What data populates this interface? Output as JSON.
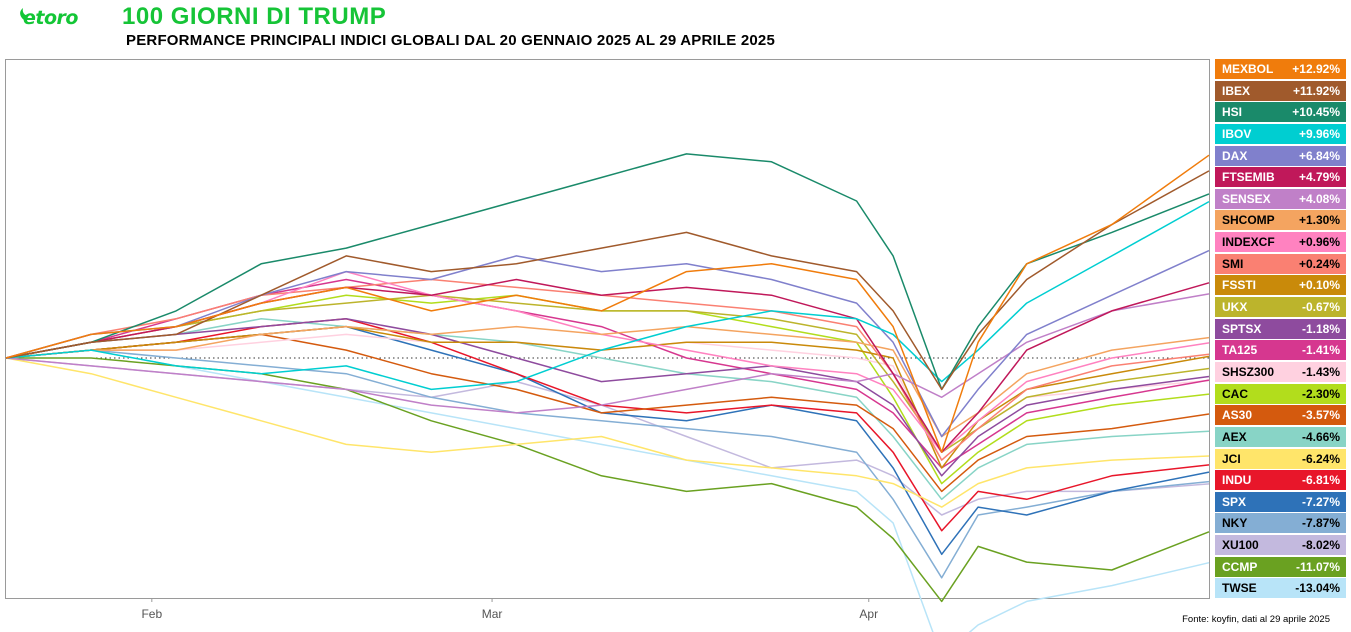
{
  "header": {
    "logo_text": "etoro",
    "title": "100 GIORNI DI TRUMP",
    "subtitle": "PERFORMANCE PRINCIPALI INDICI GLOBALI DAL 20 GENNAIO 2025 AL 29 APRILE 2025"
  },
  "source_note": "Fonte: koyfin, dati al 29 aprile 2025",
  "colors": {
    "brand_green": "#13c636",
    "frame": "#9a9a9a",
    "zero_line": "#333333"
  },
  "chart_data": {
    "type": "line",
    "title": "100 GIORNI DI TRUMP",
    "subtitle": "PERFORMANCE PRINCIPALI INDICI GLOBALI DAL 20 GENNAIO 2025 AL 29 APRILE 2025",
    "xlabel": "",
    "ylabel": "",
    "x_ticks": [
      "Feb",
      "Mar",
      "Apr"
    ],
    "x": [
      "2025-01-20",
      "2025-01-27",
      "2025-02-03",
      "2025-02-10",
      "2025-02-17",
      "2025-02-24",
      "2025-03-03",
      "2025-03-10",
      "2025-03-17",
      "2025-03-24",
      "2025-03-31",
      "2025-04-03",
      "2025-04-07",
      "2025-04-10",
      "2025-04-14",
      "2025-04-21",
      "2025-04-29"
    ],
    "ylim": [
      -17,
      17
    ],
    "grid": false,
    "legend_position": "right",
    "series": [
      {
        "name": "MEXBOL",
        "label": "+12.92%",
        "color": "#f07c0c",
        "text_color": "#ffffff",
        "values": [
          0,
          1.5,
          2.0,
          3.5,
          4.5,
          3.0,
          4.0,
          3.0,
          5.5,
          6.0,
          5.0,
          2.0,
          -6.0,
          1.0,
          6.0,
          8.5,
          12.92
        ]
      },
      {
        "name": "IBEX",
        "label": "+11.92%",
        "color": "#a05a2c",
        "text_color": "#ffffff",
        "values": [
          0,
          1.0,
          1.5,
          4.0,
          6.5,
          5.5,
          6.0,
          7.0,
          8.0,
          6.5,
          5.5,
          3.0,
          -2.0,
          1.5,
          5.0,
          8.5,
          11.92
        ]
      },
      {
        "name": "HSI",
        "label": "+10.45%",
        "color": "#1a8a6a",
        "text_color": "#ffffff",
        "values": [
          0,
          1.0,
          3.0,
          6.0,
          7.0,
          8.5,
          10.0,
          11.5,
          13.0,
          12.5,
          10.0,
          6.5,
          -2.0,
          2.0,
          6.0,
          8.0,
          10.45
        ]
      },
      {
        "name": "IBOV",
        "label": "+9.96%",
        "color": "#00ced1",
        "text_color": "#ffffff",
        "values": [
          0,
          0.5,
          -0.5,
          -1.0,
          -0.5,
          -2.0,
          -1.5,
          0.5,
          2.0,
          3.0,
          2.5,
          1.5,
          -1.5,
          0.5,
          3.5,
          6.5,
          9.96
        ]
      },
      {
        "name": "DAX",
        "label": "+6.84%",
        "color": "#8080cc",
        "text_color": "#ffffff",
        "values": [
          0,
          1.5,
          2.0,
          4.0,
          5.5,
          5.0,
          6.5,
          5.5,
          6.0,
          5.0,
          3.5,
          1.0,
          -5.0,
          -2.0,
          1.5,
          4.0,
          6.84
        ]
      },
      {
        "name": "FTSEMIB",
        "label": "+4.79%",
        "color": "#c0185a",
        "text_color": "#ffffff",
        "values": [
          0,
          1.0,
          2.0,
          3.5,
          4.5,
          4.0,
          5.0,
          4.0,
          4.5,
          4.0,
          2.5,
          -1.0,
          -6.0,
          -3.5,
          0.5,
          3.0,
          4.79
        ]
      },
      {
        "name": "SENSEX",
        "label": "+4.08%",
        "color": "#c080c8",
        "text_color": "#ffffff",
        "values": [
          0,
          -0.5,
          -1.0,
          -1.5,
          -2.0,
          -3.0,
          -3.5,
          -3.0,
          -2.0,
          -1.0,
          -1.5,
          -1.0,
          -2.5,
          -1.0,
          1.0,
          3.0,
          4.08
        ]
      },
      {
        "name": "SHCOMP",
        "label": "+1.30%",
        "color": "#f4a460",
        "text_color": "#000000",
        "values": [
          0,
          0.5,
          0.5,
          1.5,
          2.0,
          1.5,
          2.0,
          1.5,
          2.0,
          1.5,
          1.0,
          0.5,
          -5.0,
          -3.5,
          -1.0,
          0.5,
          1.3
        ]
      },
      {
        "name": "INDEXCF",
        "label": "+0.96%",
        "color": "#ff82c0",
        "text_color": "#000000",
        "values": [
          0,
          1.0,
          2.0,
          3.5,
          5.5,
          4.0,
          3.0,
          1.5,
          0.5,
          -0.5,
          -1.0,
          -2.0,
          -6.0,
          -4.0,
          -1.5,
          0.0,
          0.96
        ]
      },
      {
        "name": "SMI",
        "label": "+0.24%",
        "color": "#fa8072",
        "text_color": "#000000",
        "values": [
          0,
          1.5,
          2.5,
          4.0,
          4.5,
          5.0,
          4.5,
          4.0,
          3.5,
          3.0,
          2.0,
          -1.0,
          -6.5,
          -4.5,
          -2.0,
          -0.5,
          0.24
        ]
      },
      {
        "name": "FSSTI",
        "label": "+0.10%",
        "color": "#c98a0a",
        "text_color": "#ffffff",
        "values": [
          0,
          0.5,
          1.0,
          1.5,
          2.0,
          1.0,
          1.0,
          0.5,
          1.0,
          1.0,
          0.5,
          0.0,
          -7.0,
          -4.0,
          -2.0,
          -1.0,
          0.1
        ]
      },
      {
        "name": "UKX",
        "label": "-0.67%",
        "color": "#bcb42c",
        "text_color": "#ffffff",
        "values": [
          0,
          1.0,
          2.0,
          3.0,
          3.5,
          4.0,
          3.5,
          3.0,
          3.0,
          2.5,
          1.5,
          -1.5,
          -6.0,
          -4.5,
          -2.5,
          -1.5,
          -0.67
        ]
      },
      {
        "name": "SPTSX",
        "label": "-1.18%",
        "color": "#8e4b9e",
        "text_color": "#ffffff",
        "values": [
          0,
          1.0,
          1.5,
          2.0,
          2.5,
          1.5,
          0.0,
          -1.5,
          -1.0,
          -0.5,
          -1.5,
          -3.0,
          -7.5,
          -5.0,
          -3.0,
          -2.0,
          -1.18
        ]
      },
      {
        "name": "TA125",
        "label": "-1.41%",
        "color": "#d6378f",
        "text_color": "#ffffff",
        "values": [
          0,
          1.0,
          2.5,
          4.0,
          5.0,
          4.0,
          3.0,
          2.0,
          0.0,
          -1.0,
          -2.0,
          -3.5,
          -7.0,
          -5.5,
          -3.5,
          -2.5,
          -1.41
        ]
      },
      {
        "name": "SHSZ300",
        "label": "-1.43%",
        "color": "#ffd1e0",
        "text_color": "#000000",
        "values": [
          0,
          0.5,
          0.5,
          1.0,
          1.5,
          1.0,
          1.0,
          0.5,
          1.0,
          0.5,
          0.0,
          -0.5,
          -6.5,
          -4.5,
          -2.5,
          -2.0,
          -1.43
        ]
      },
      {
        "name": "CAC",
        "label": "-2.30%",
        "color": "#b2dd1c",
        "text_color": "#000000",
        "values": [
          0,
          1.0,
          2.0,
          3.0,
          4.0,
          3.5,
          4.0,
          3.0,
          3.0,
          2.0,
          1.0,
          -2.5,
          -8.0,
          -6.0,
          -4.0,
          -3.0,
          -2.3
        ]
      },
      {
        "name": "AS30",
        "label": "-3.57%",
        "color": "#d45a0e",
        "text_color": "#ffffff",
        "values": [
          0,
          0.5,
          1.0,
          1.5,
          0.5,
          -1.0,
          -2.0,
          -3.5,
          -3.0,
          -2.5,
          -3.0,
          -4.5,
          -8.5,
          -6.5,
          -5.0,
          -4.5,
          -3.57
        ]
      },
      {
        "name": "AEX",
        "label": "-4.66%",
        "color": "#88d4c6",
        "text_color": "#000000",
        "values": [
          0,
          1.0,
          1.5,
          2.5,
          2.0,
          1.5,
          1.0,
          0.0,
          -1.0,
          -1.5,
          -2.5,
          -5.0,
          -9.0,
          -7.0,
          -5.5,
          -5.0,
          -4.66
        ]
      },
      {
        "name": "JCI",
        "label": "-6.24%",
        "color": "#ffe56a",
        "text_color": "#000000",
        "values": [
          0,
          -1.0,
          -2.5,
          -4.0,
          -5.5,
          -6.0,
          -5.5,
          -5.0,
          -6.5,
          -7.0,
          -7.5,
          -8.0,
          -9.5,
          -8.0,
          -7.0,
          -6.5,
          -6.24
        ]
      },
      {
        "name": "INDU",
        "label": "-6.81%",
        "color": "#e8162a",
        "text_color": "#ffffff",
        "values": [
          0,
          0.5,
          1.0,
          2.0,
          2.5,
          1.0,
          -1.0,
          -3.0,
          -3.5,
          -3.0,
          -3.5,
          -6.0,
          -11.0,
          -8.5,
          -9.0,
          -7.5,
          -6.81
        ]
      },
      {
        "name": "SPX",
        "label": "-7.27%",
        "color": "#2e72b8",
        "text_color": "#ffffff",
        "values": [
          0,
          0.5,
          1.0,
          1.5,
          2.0,
          0.5,
          -1.0,
          -3.5,
          -4.0,
          -3.0,
          -4.0,
          -7.0,
          -12.5,
          -9.5,
          -10.0,
          -8.5,
          -7.27
        ]
      },
      {
        "name": "NKY",
        "label": "-7.87%",
        "color": "#84aed4",
        "text_color": "#000000",
        "values": [
          0,
          0.5,
          0.0,
          -0.5,
          -1.0,
          -2.5,
          -3.5,
          -4.0,
          -4.5,
          -5.0,
          -6.0,
          -9.0,
          -14.0,
          -10.0,
          -9.5,
          -8.5,
          -7.87
        ]
      },
      {
        "name": "XU100",
        "label": "-8.02%",
        "color": "#c3b9de",
        "text_color": "#000000",
        "values": [
          0,
          -0.5,
          -1.0,
          -1.5,
          -2.0,
          -2.5,
          -1.5,
          -3.0,
          -5.0,
          -7.0,
          -6.5,
          -7.5,
          -10.0,
          -9.0,
          -8.5,
          -8.5,
          -8.02
        ]
      },
      {
        "name": "CCMP",
        "label": "-11.07%",
        "color": "#6aa121",
        "text_color": "#ffffff",
        "values": [
          0,
          0.0,
          -0.5,
          -1.0,
          -2.0,
          -4.0,
          -5.5,
          -7.5,
          -8.5,
          -8.0,
          -9.5,
          -11.5,
          -15.5,
          -12.0,
          -13.0,
          -13.5,
          -11.07
        ]
      },
      {
        "name": "TWSE",
        "label": "-13.04%",
        "color": "#b8e4f8",
        "text_color": "#000000",
        "values": [
          0,
          0.5,
          -0.5,
          -1.5,
          -2.5,
          -3.5,
          -4.5,
          -5.5,
          -6.5,
          -7.5,
          -8.5,
          -10.5,
          -19.0,
          -17.0,
          -15.5,
          -14.5,
          -13.04
        ]
      }
    ]
  }
}
